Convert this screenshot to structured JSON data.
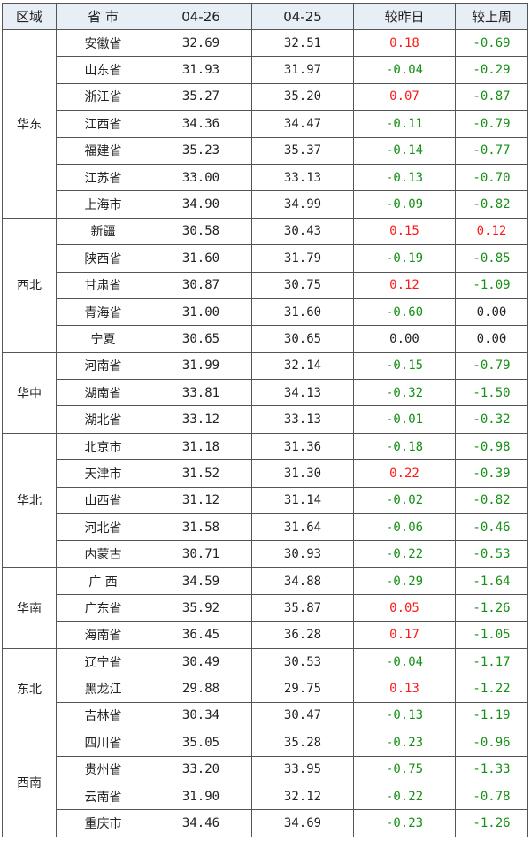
{
  "headers": [
    "区域",
    "省 市",
    "04-26",
    "04-25",
    "较昨日",
    "较上周"
  ],
  "colors": {
    "up": "#ff1a1a",
    "down": "#169016",
    "flat": "#222222",
    "header_bg": "#e8eef5"
  },
  "regions": [
    {
      "name": "华东",
      "rows": [
        [
          "安徽省",
          "32.69",
          "32.51",
          "0.18",
          "-0.69"
        ],
        [
          "山东省",
          "31.93",
          "31.97",
          "-0.04",
          "-0.29"
        ],
        [
          "浙江省",
          "35.27",
          "35.20",
          "0.07",
          "-0.87"
        ],
        [
          "江西省",
          "34.36",
          "34.47",
          "-0.11",
          "-0.79"
        ],
        [
          "福建省",
          "35.23",
          "35.37",
          "-0.14",
          "-0.77"
        ],
        [
          "江苏省",
          "33.00",
          "33.13",
          "-0.13",
          "-0.70"
        ],
        [
          "上海市",
          "34.90",
          "34.99",
          "-0.09",
          "-0.82"
        ]
      ]
    },
    {
      "name": "西北",
      "rows": [
        [
          "新疆",
          "30.58",
          "30.43",
          "0.15",
          "0.12"
        ],
        [
          "陕西省",
          "31.60",
          "31.79",
          "-0.19",
          "-0.85"
        ],
        [
          "甘肃省",
          "30.87",
          "30.75",
          "0.12",
          "-1.09"
        ],
        [
          "青海省",
          "31.00",
          "31.60",
          "-0.60",
          "0.00"
        ],
        [
          "宁夏",
          "30.65",
          "30.65",
          "0.00",
          "0.00"
        ]
      ]
    },
    {
      "name": "华中",
      "rows": [
        [
          "河南省",
          "31.99",
          "32.14",
          "-0.15",
          "-0.79"
        ],
        [
          "湖南省",
          "33.81",
          "34.13",
          "-0.32",
          "-1.50"
        ],
        [
          "湖北省",
          "33.12",
          "33.13",
          "-0.01",
          "-0.32"
        ]
      ]
    },
    {
      "name": "华北",
      "rows": [
        [
          "北京市",
          "31.18",
          "31.36",
          "-0.18",
          "-0.98"
        ],
        [
          "天津市",
          "31.52",
          "31.30",
          "0.22",
          "-0.39"
        ],
        [
          "山西省",
          "31.12",
          "31.14",
          "-0.02",
          "-0.82"
        ],
        [
          "河北省",
          "31.58",
          "31.64",
          "-0.06",
          "-0.46"
        ],
        [
          "内蒙古",
          "30.71",
          "30.93",
          "-0.22",
          "-0.53"
        ]
      ]
    },
    {
      "name": "华南",
      "rows": [
        [
          "广 西",
          "34.59",
          "34.88",
          "-0.29",
          "-1.64"
        ],
        [
          "广东省",
          "35.92",
          "35.87",
          "0.05",
          "-1.26"
        ],
        [
          "海南省",
          "36.45",
          "36.28",
          "0.17",
          "-1.05"
        ]
      ]
    },
    {
      "name": "东北",
      "rows": [
        [
          "辽宁省",
          "30.49",
          "30.53",
          "-0.04",
          "-1.17"
        ],
        [
          "黑龙江",
          "29.88",
          "29.75",
          "0.13",
          "-1.22"
        ],
        [
          "吉林省",
          "30.34",
          "30.47",
          "-0.13",
          "-1.19"
        ]
      ]
    },
    {
      "name": "西南",
      "rows": [
        [
          "四川省",
          "35.05",
          "35.28",
          "-0.23",
          "-0.96"
        ],
        [
          "贵州省",
          "33.20",
          "33.95",
          "-0.75",
          "-1.33"
        ],
        [
          "云南省",
          "31.90",
          "32.12",
          "-0.22",
          "-0.78"
        ],
        [
          "重庆市",
          "34.46",
          "34.69",
          "-0.23",
          "-1.26"
        ]
      ]
    }
  ]
}
